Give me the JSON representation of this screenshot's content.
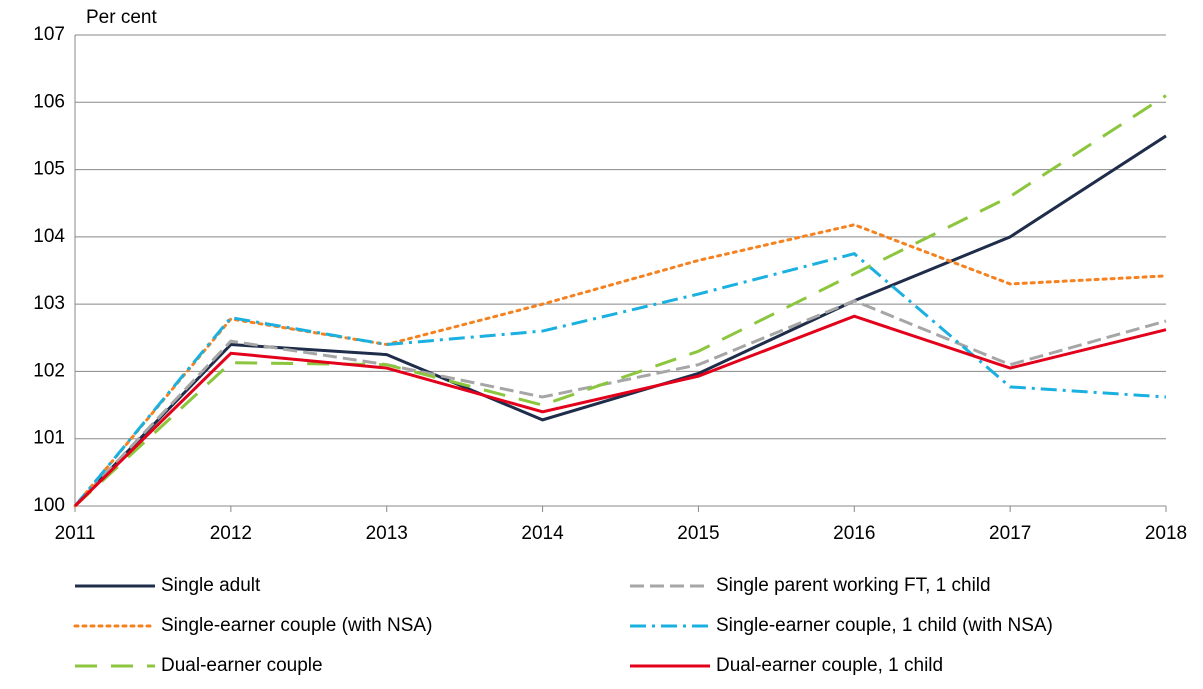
{
  "chart_data": {
    "type": "line",
    "y_label": "Per cent",
    "x": [
      2011,
      2012,
      2013,
      2014,
      2015,
      2016,
      2017,
      2018
    ],
    "xlim": [
      2011,
      2018
    ],
    "xticks": [
      2011,
      2012,
      2013,
      2014,
      2015,
      2016,
      2017,
      2018
    ],
    "ylim": [
      100,
      107
    ],
    "yticks": [
      100,
      101,
      102,
      103,
      104,
      105,
      106,
      107
    ],
    "grid": true,
    "legend": "bottom",
    "series": [
      {
        "name": "Single adult",
        "color": "#1f2d4a",
        "dash": "solid",
        "values": [
          100,
          102.4,
          102.25,
          101.28,
          101.97,
          103.05,
          104.0,
          105.5
        ]
      },
      {
        "name": "Single parent working FT, 1 child",
        "color": "#a6a6a6",
        "dash": "dashed",
        "values": [
          100,
          102.45,
          102.1,
          101.62,
          102.1,
          103.05,
          102.1,
          102.75
        ]
      },
      {
        "name": "Single-earner couple (with NSA)",
        "color": "#f58220",
        "dash": "dotted",
        "values": [
          100,
          102.78,
          102.4,
          103.0,
          103.65,
          104.18,
          103.3,
          103.42
        ]
      },
      {
        "name": "Single-earner couple, 1 child (with NSA)",
        "color": "#1ab0e0",
        "dash": "dashdot",
        "values": [
          100,
          102.8,
          102.4,
          102.6,
          103.15,
          103.75,
          101.77,
          101.62
        ]
      },
      {
        "name": "Dual-earner couple",
        "color": "#8cc63e",
        "dash": "longdash",
        "values": [
          100,
          102.13,
          102.1,
          101.5,
          102.3,
          103.45,
          104.6,
          106.1
        ]
      },
      {
        "name": "Dual-earner couple, 1 child",
        "color": "#e3001b",
        "dash": "solid",
        "values": [
          100,
          102.27,
          102.05,
          101.4,
          101.93,
          102.82,
          102.05,
          102.62
        ]
      }
    ]
  }
}
